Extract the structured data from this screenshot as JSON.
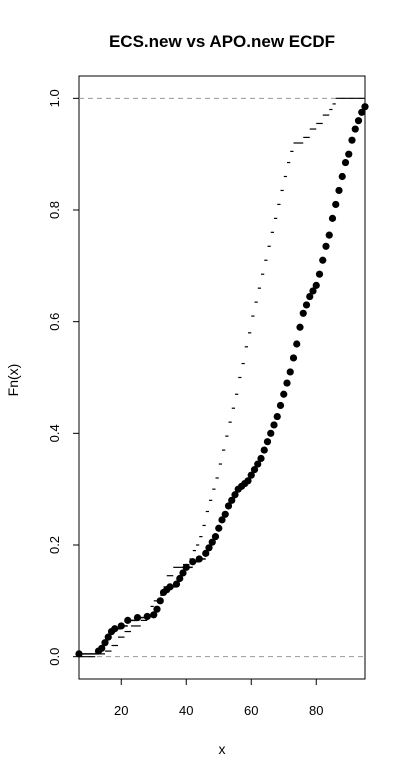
{
  "chart_data": {
    "type": "line",
    "title": "ECS.new vs APO.new ECDF",
    "xlabel": "x",
    "ylabel": "Fn(x)",
    "xlim": [
      7,
      95
    ],
    "ylim": [
      -0.04,
      1.04
    ],
    "x_ticks": [
      20,
      40,
      60,
      80
    ],
    "y_ticks": [
      0.0,
      0.2,
      0.4,
      0.6,
      0.8,
      1.0
    ],
    "x_tick_labels": [
      "20",
      "40",
      "60",
      "80"
    ],
    "y_tick_labels": [
      "0.0",
      "0.2",
      "0.4",
      "0.6",
      "0.8",
      "1.0"
    ],
    "reference_lines": [
      0,
      1
    ],
    "grid": false,
    "legend": "none",
    "series": [
      {
        "style": "step-points",
        "color": "#000000",
        "points": [
          [
            7,
            0.005
          ],
          [
            13,
            0.01
          ],
          [
            14,
            0.015
          ],
          [
            15,
            0.025
          ],
          [
            16,
            0.035
          ],
          [
            17,
            0.045
          ],
          [
            18,
            0.05
          ],
          [
            20,
            0.055
          ],
          [
            22,
            0.065
          ],
          [
            25,
            0.07
          ],
          [
            28,
            0.072
          ],
          [
            30,
            0.075
          ],
          [
            31,
            0.085
          ],
          [
            32,
            0.1
          ],
          [
            33,
            0.115
          ],
          [
            34,
            0.12
          ],
          [
            35,
            0.125
          ],
          [
            37,
            0.13
          ],
          [
            38,
            0.14
          ],
          [
            39,
            0.15
          ],
          [
            40,
            0.16
          ],
          [
            42,
            0.17
          ],
          [
            44,
            0.175
          ],
          [
            46,
            0.185
          ],
          [
            47,
            0.195
          ],
          [
            48,
            0.205
          ],
          [
            49,
            0.215
          ],
          [
            50,
            0.23
          ],
          [
            51,
            0.245
          ],
          [
            52,
            0.255
          ],
          [
            53,
            0.27
          ],
          [
            54,
            0.28
          ],
          [
            55,
            0.29
          ],
          [
            56,
            0.3
          ],
          [
            57,
            0.305
          ],
          [
            58,
            0.31
          ],
          [
            59,
            0.315
          ],
          [
            60,
            0.325
          ],
          [
            61,
            0.335
          ],
          [
            62,
            0.345
          ],
          [
            63,
            0.355
          ],
          [
            64,
            0.37
          ],
          [
            65,
            0.385
          ],
          [
            66,
            0.4
          ],
          [
            67,
            0.415
          ],
          [
            68,
            0.43
          ],
          [
            69,
            0.45
          ],
          [
            70,
            0.47
          ],
          [
            71,
            0.49
          ],
          [
            72,
            0.51
          ],
          [
            73,
            0.535
          ],
          [
            74,
            0.56
          ],
          [
            75,
            0.59
          ],
          [
            76,
            0.615
          ],
          [
            77,
            0.63
          ],
          [
            78,
            0.645
          ],
          [
            79,
            0.655
          ],
          [
            80,
            0.665
          ],
          [
            81,
            0.685
          ],
          [
            82,
            0.71
          ],
          [
            83,
            0.735
          ],
          [
            84,
            0.755
          ],
          [
            85,
            0.785
          ],
          [
            86,
            0.81
          ],
          [
            87,
            0.835
          ],
          [
            88,
            0.86
          ],
          [
            89,
            0.885
          ],
          [
            90,
            0.9
          ],
          [
            91,
            0.925
          ],
          [
            92,
            0.945
          ],
          [
            93,
            0.96
          ],
          [
            94,
            0.975
          ],
          [
            95,
            0.985
          ]
        ]
      },
      {
        "style": "step",
        "color": "#000000",
        "points": [
          [
            7,
            0.0
          ],
          [
            12,
            0.005
          ],
          [
            15,
            0.01
          ],
          [
            17,
            0.02
          ],
          [
            19,
            0.035
          ],
          [
            21,
            0.045
          ],
          [
            23,
            0.055
          ],
          [
            26,
            0.065
          ],
          [
            28,
            0.075
          ],
          [
            29,
            0.09
          ],
          [
            30,
            0.1
          ],
          [
            32,
            0.11
          ],
          [
            33,
            0.125
          ],
          [
            34,
            0.145
          ],
          [
            36,
            0.16
          ],
          [
            39,
            0.165
          ],
          [
            41,
            0.175
          ],
          [
            42,
            0.19
          ],
          [
            43,
            0.2
          ],
          [
            44,
            0.215
          ],
          [
            45,
            0.235
          ],
          [
            46,
            0.26
          ],
          [
            47,
            0.28
          ],
          [
            48,
            0.3
          ],
          [
            49,
            0.32
          ],
          [
            50,
            0.345
          ],
          [
            51,
            0.37
          ],
          [
            52,
            0.395
          ],
          [
            53,
            0.42
          ],
          [
            54,
            0.445
          ],
          [
            55,
            0.47
          ],
          [
            56,
            0.5
          ],
          [
            57,
            0.525
          ],
          [
            58,
            0.555
          ],
          [
            59,
            0.58
          ],
          [
            60,
            0.61
          ],
          [
            61,
            0.635
          ],
          [
            62,
            0.66
          ],
          [
            63,
            0.685
          ],
          [
            64,
            0.71
          ],
          [
            65,
            0.735
          ],
          [
            66,
            0.76
          ],
          [
            67,
            0.785
          ],
          [
            68,
            0.81
          ],
          [
            69,
            0.835
          ],
          [
            70,
            0.86
          ],
          [
            71,
            0.885
          ],
          [
            72,
            0.905
          ],
          [
            73,
            0.92
          ],
          [
            76,
            0.93
          ],
          [
            78,
            0.945
          ],
          [
            80,
            0.955
          ],
          [
            82,
            0.97
          ],
          [
            84,
            0.98
          ],
          [
            85,
            0.99
          ],
          [
            86,
            1.0
          ],
          [
            95,
            1.0
          ]
        ]
      }
    ]
  }
}
